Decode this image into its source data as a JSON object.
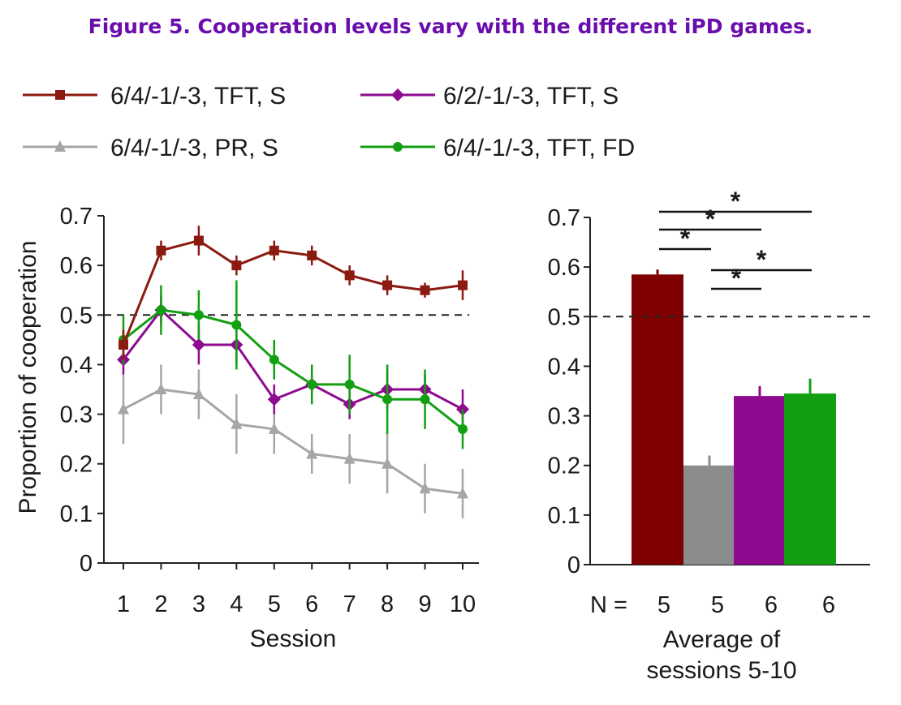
{
  "figure": {
    "title": "Figure 5. Cooperation levels vary with the different iPD games."
  },
  "legend": [
    {
      "label": "6/4/-1/-3, TFT, S",
      "color": "#8b1a10",
      "marker": "square"
    },
    {
      "label": "6/2/-1/-3, TFT, S",
      "color": "#8e0a8e",
      "marker": "diamond"
    },
    {
      "label": "6/4/-1/-3, PR, S",
      "color": "#a6a6a6",
      "marker": "triangle"
    },
    {
      "label": "6/4/-1/-3, TFT, FD",
      "color": "#12a012",
      "marker": "circle"
    }
  ],
  "chart_data": [
    {
      "type": "line",
      "x": [
        1,
        2,
        3,
        4,
        5,
        6,
        7,
        8,
        9,
        10
      ],
      "xlabel": "Session",
      "ylabel": "Proportion of cooperation",
      "ylim": [
        0,
        0.7
      ],
      "yticks": [
        "0",
        "0.1",
        "0.2",
        "0.3",
        "0.4",
        "0.5",
        "0.6",
        "0.7"
      ],
      "reference_line": 0.5,
      "series": [
        {
          "name": "6/4/-1/-3, TFT, S",
          "color": "#8b1a10",
          "marker": "square",
          "values": [
            0.44,
            0.63,
            0.65,
            0.6,
            0.63,
            0.62,
            0.58,
            0.56,
            0.55,
            0.56
          ],
          "error": [
            0.03,
            0.02,
            0.03,
            0.02,
            0.02,
            0.02,
            0.02,
            0.02,
            0.015,
            0.03
          ]
        },
        {
          "name": "6/2/-1/-3, TFT, S",
          "color": "#8e0a8e",
          "marker": "diamond",
          "values": [
            0.41,
            0.51,
            0.44,
            0.44,
            0.33,
            0.36,
            0.32,
            0.35,
            0.35,
            0.31
          ],
          "error": [
            0.03,
            0.03,
            0.04,
            0.04,
            0.03,
            0.03,
            0.03,
            0.04,
            0.03,
            0.04
          ]
        },
        {
          "name": "6/4/-1/-3, PR, S",
          "color": "#a6a6a6",
          "marker": "triangle",
          "values": [
            0.31,
            0.35,
            0.34,
            0.28,
            0.27,
            0.22,
            0.21,
            0.2,
            0.15,
            0.14
          ],
          "error": [
            0.07,
            0.05,
            0.05,
            0.06,
            0.05,
            0.04,
            0.05,
            0.06,
            0.05,
            0.05
          ]
        },
        {
          "name": "6/4/-1/-3, TFT, FD",
          "color": "#12a012",
          "marker": "circle",
          "values": [
            0.45,
            0.51,
            0.5,
            0.48,
            0.41,
            0.36,
            0.36,
            0.33,
            0.33,
            0.27
          ],
          "error": [
            0.05,
            0.05,
            0.05,
            0.09,
            0.04,
            0.04,
            0.06,
            0.07,
            0.06,
            0.04
          ]
        }
      ]
    },
    {
      "type": "bar",
      "categories": [
        "6/4/-1/-3, TFT, S",
        "6/4/-1/-3, PR, S",
        "6/2/-1/-3, TFT, S",
        "6/4/-1/-3, TFT, FD"
      ],
      "values": [
        0.585,
        0.2,
        0.34,
        0.345
      ],
      "error": [
        0.01,
        0.02,
        0.02,
        0.03
      ],
      "colors": [
        "#7f0000",
        "#8c8c8c",
        "#8e0a8e",
        "#12a012"
      ],
      "n_label": "N =",
      "n_values": [
        "5",
        "5",
        "6",
        "6"
      ],
      "xlabel": [
        "Average of",
        "sessions 5-10"
      ],
      "ylim": [
        0,
        0.7
      ],
      "yticks": [
        "0",
        "0.1",
        "0.2",
        "0.3",
        "0.4",
        "0.5",
        "0.6",
        "0.7"
      ],
      "reference_line": 0.5,
      "significance": [
        {
          "from": 0,
          "to": 3,
          "label": "*"
        },
        {
          "from": 0,
          "to": 2,
          "label": "*"
        },
        {
          "from": 0,
          "to": 1,
          "label": "*"
        },
        {
          "from": 1,
          "to": 3,
          "label": "*"
        },
        {
          "from": 1,
          "to": 2,
          "label": "*"
        }
      ]
    }
  ]
}
